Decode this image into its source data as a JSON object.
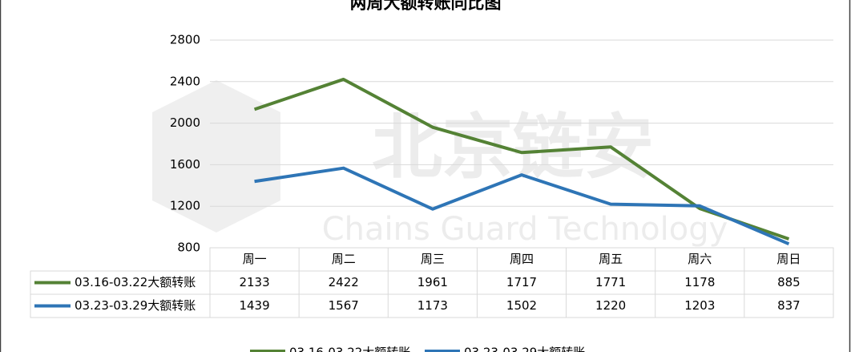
{
  "chart_data": {
    "type": "line",
    "title": "两周大额转账同比图",
    "categories": [
      "周一",
      "周二",
      "周三",
      "周四",
      "周五",
      "周六",
      "周日"
    ],
    "series": [
      {
        "name": "03.16-03.22大额转账",
        "color": "#548235",
        "values": [
          2133,
          2422,
          1961,
          1717,
          1771,
          1178,
          885
        ]
      },
      {
        "name": "03.23-03.29大额转账",
        "color": "#2e75b6",
        "values": [
          1439,
          1567,
          1173,
          1502,
          1220,
          1203,
          837
        ]
      }
    ],
    "ylim": [
      800,
      2800
    ],
    "yticks": [
      800,
      1200,
      1600,
      2000,
      2400,
      2800
    ],
    "grid": true,
    "data_table": true,
    "legend": "bottom"
  },
  "watermark": {
    "title": "北京链安",
    "subtitle": "Chains Guard Technology"
  }
}
